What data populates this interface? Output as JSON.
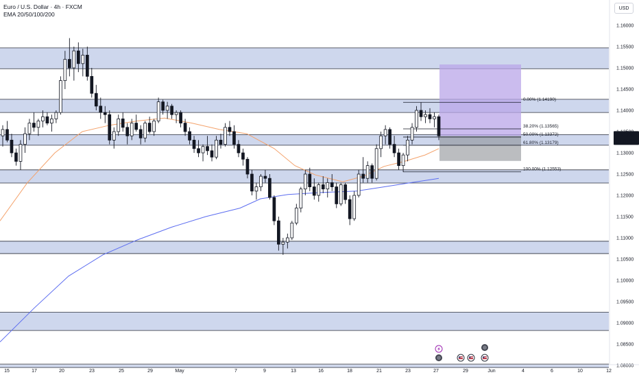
{
  "header": {
    "symbol_line": "Euro / U.S. Dollar · 4h · FXCM",
    "indicator_line": "EMA 20/50/100/200"
  },
  "currency_button": "USD",
  "price_axis": {
    "ticks": [
      "1.16000",
      "1.15500",
      "1.15000",
      "1.14500",
      "1.14000",
      "1.13500",
      "1.13000",
      "1.12500",
      "1.12000",
      "1.11500",
      "1.11000",
      "1.10500",
      "1.10000",
      "1.09500",
      "1.09000",
      "1.08500",
      "1.08000"
    ],
    "current_price": "1.13398",
    "countdown": "01:07:33"
  },
  "time_axis": {
    "labels": [
      "15",
      "17",
      "20",
      "23",
      "25",
      "29",
      "May",
      "7",
      "9",
      "13",
      "16",
      "18",
      "21",
      "23",
      "27",
      "29",
      "Jun",
      "4",
      "6",
      "10",
      "12"
    ]
  },
  "chart_data": {
    "type": "candlestick",
    "title": "Euro / U.S. Dollar · 4h · FXCM",
    "indicators": [
      "EMA 20/50/100/200"
    ],
    "ylim": [
      1.0795,
      1.1635
    ],
    "last_price": 1.13398,
    "zones": [
      {
        "low": 1.1498,
        "high": 1.1547
      },
      {
        "low": 1.1395,
        "high": 1.1426
      },
      {
        "low": 1.1318,
        "high": 1.1343
      },
      {
        "low": 1.1229,
        "high": 1.126
      },
      {
        "low": 1.1063,
        "high": 1.1092
      },
      {
        "low": 1.0882,
        "high": 1.0925
      },
      {
        "low": 1.0795,
        "high": 1.0803
      }
    ],
    "fibonacci": [
      {
        "label": "0.00% (1.14190)",
        "value": 1.1419
      },
      {
        "label": "38.20% (1.13565)",
        "value": 1.13565
      },
      {
        "label": "50.00% (1.13372)",
        "value": 1.13372
      },
      {
        "label": "61.80% (1.13179)",
        "value": 1.13179
      },
      {
        "label": "100.00% (1.12553)",
        "value": 1.12553
      }
    ],
    "position_tool": {
      "target": 1.1508,
      "entry": 1.134,
      "stop": 1.1281
    },
    "ema_slow": [
      [
        0,
        1.0855
      ],
      [
        50,
        1.0935
      ],
      [
        100,
        1.101
      ],
      [
        150,
        1.106
      ],
      [
        200,
        1.1095
      ],
      [
        250,
        1.1125
      ],
      [
        300,
        1.115
      ],
      [
        350,
        1.117
      ],
      [
        380,
        1.1192
      ],
      [
        420,
        1.1202
      ],
      [
        470,
        1.1207
      ],
      [
        520,
        1.121
      ],
      [
        560,
        1.122
      ],
      [
        600,
        1.123
      ],
      [
        640,
        1.124
      ]
    ],
    "ema_fast": [
      [
        0,
        1.114
      ],
      [
        40,
        1.123
      ],
      [
        80,
        1.13
      ],
      [
        120,
        1.135
      ],
      [
        160,
        1.1365
      ],
      [
        200,
        1.1375
      ],
      [
        240,
        1.1382
      ],
      [
        280,
        1.137
      ],
      [
        320,
        1.1355
      ],
      [
        360,
        1.1345
      ],
      [
        400,
        1.131
      ],
      [
        430,
        1.127
      ],
      [
        460,
        1.1248
      ],
      [
        500,
        1.1232
      ],
      [
        530,
        1.1245
      ],
      [
        560,
        1.1268
      ],
      [
        590,
        1.128
      ],
      [
        620,
        1.1295
      ],
      [
        640,
        1.131
      ]
    ],
    "candles": [
      [
        1.134,
        1.1365,
        1.1315,
        1.1355
      ],
      [
        1.1355,
        1.1375,
        1.1325,
        1.133
      ],
      [
        1.133,
        1.1345,
        1.129,
        1.13
      ],
      [
        1.13,
        1.131,
        1.127,
        1.128
      ],
      [
        1.128,
        1.133,
        1.126,
        1.132
      ],
      [
        1.132,
        1.136,
        1.13,
        1.1345
      ],
      [
        1.1345,
        1.138,
        1.133,
        1.137
      ],
      [
        1.137,
        1.1395,
        1.135,
        1.136
      ],
      [
        1.136,
        1.138,
        1.134,
        1.1375
      ],
      [
        1.1375,
        1.14,
        1.136,
        1.1385
      ],
      [
        1.1385,
        1.1395,
        1.1365,
        1.137
      ],
      [
        1.137,
        1.139,
        1.135,
        1.138
      ],
      [
        1.138,
        1.14,
        1.137,
        1.1395
      ],
      [
        1.1395,
        1.148,
        1.139,
        1.147
      ],
      [
        1.147,
        1.154,
        1.145,
        1.152
      ],
      [
        1.152,
        1.157,
        1.148,
        1.15
      ],
      [
        1.15,
        1.155,
        1.147,
        1.154
      ],
      [
        1.154,
        1.156,
        1.149,
        1.151
      ],
      [
        1.151,
        1.1545,
        1.148,
        1.153
      ],
      [
        1.153,
        1.155,
        1.147,
        1.148
      ],
      [
        1.148,
        1.15,
        1.143,
        1.144
      ],
      [
        1.144,
        1.146,
        1.14,
        1.141
      ],
      [
        1.141,
        1.143,
        1.138,
        1.1395
      ],
      [
        1.1395,
        1.141,
        1.137,
        1.139
      ],
      [
        1.139,
        1.14,
        1.132,
        1.133
      ],
      [
        1.133,
        1.136,
        1.131,
        1.135
      ],
      [
        1.135,
        1.139,
        1.134,
        1.138
      ],
      [
        1.138,
        1.1395,
        1.135,
        1.136
      ],
      [
        1.136,
        1.137,
        1.132,
        1.134
      ],
      [
        1.134,
        1.138,
        1.133,
        1.137
      ],
      [
        1.137,
        1.139,
        1.135,
        1.1355
      ],
      [
        1.1355,
        1.1365,
        1.132,
        1.1335
      ],
      [
        1.1335,
        1.1375,
        1.1325,
        1.137
      ],
      [
        1.137,
        1.1385,
        1.1345,
        1.135
      ],
      [
        1.135,
        1.138,
        1.134,
        1.1375
      ],
      [
        1.1375,
        1.143,
        1.137,
        1.142
      ],
      [
        1.142,
        1.1425,
        1.139,
        1.14
      ],
      [
        1.14,
        1.142,
        1.138,
        1.141
      ],
      [
        1.141,
        1.1415,
        1.138,
        1.139
      ],
      [
        1.139,
        1.14,
        1.137,
        1.1395
      ],
      [
        1.1395,
        1.14,
        1.136,
        1.137
      ],
      [
        1.137,
        1.138,
        1.134,
        1.135
      ],
      [
        1.135,
        1.136,
        1.132,
        1.133
      ],
      [
        1.133,
        1.134,
        1.13,
        1.131
      ],
      [
        1.131,
        1.133,
        1.129,
        1.13
      ],
      [
        1.13,
        1.132,
        1.128,
        1.1315
      ],
      [
        1.1315,
        1.134,
        1.1295,
        1.1305
      ],
      [
        1.1305,
        1.132,
        1.128,
        1.129
      ],
      [
        1.129,
        1.134,
        1.1285,
        1.133
      ],
      [
        1.133,
        1.1345,
        1.131,
        1.132
      ],
      [
        1.132,
        1.137,
        1.1315,
        1.136
      ],
      [
        1.136,
        1.1375,
        1.134,
        1.135
      ],
      [
        1.135,
        1.1365,
        1.131,
        1.132
      ],
      [
        1.132,
        1.133,
        1.129,
        1.13
      ],
      [
        1.13,
        1.131,
        1.127,
        1.1285
      ],
      [
        1.1285,
        1.129,
        1.124,
        1.125
      ],
      [
        1.125,
        1.126,
        1.12,
        1.121
      ],
      [
        1.121,
        1.123,
        1.119,
        1.122
      ],
      [
        1.122,
        1.125,
        1.121,
        1.1245
      ],
      [
        1.1245,
        1.126,
        1.123,
        1.124
      ],
      [
        1.124,
        1.125,
        1.119,
        1.1195
      ],
      [
        1.1195,
        1.12,
        1.113,
        1.114
      ],
      [
        1.114,
        1.115,
        1.107,
        1.1085
      ],
      [
        1.1085,
        1.11,
        1.106,
        1.109
      ],
      [
        1.109,
        1.111,
        1.1075,
        1.11
      ],
      [
        1.11,
        1.114,
        1.1095,
        1.1135
      ],
      [
        1.1135,
        1.118,
        1.113,
        1.117
      ],
      [
        1.117,
        1.122,
        1.116,
        1.1215
      ],
      [
        1.1215,
        1.126,
        1.12,
        1.125
      ],
      [
        1.125,
        1.1265,
        1.121,
        1.122
      ],
      [
        1.122,
        1.124,
        1.119,
        1.12
      ],
      [
        1.12,
        1.123,
        1.1185,
        1.1225
      ],
      [
        1.1225,
        1.1245,
        1.1205,
        1.1215
      ],
      [
        1.1215,
        1.124,
        1.1195,
        1.123
      ],
      [
        1.123,
        1.125,
        1.121,
        1.122
      ],
      [
        1.122,
        1.123,
        1.117,
        1.118
      ],
      [
        1.118,
        1.123,
        1.1175,
        1.1225
      ],
      [
        1.1225,
        1.123,
        1.118,
        1.119
      ],
      [
        1.119,
        1.12,
        1.113,
        1.1145
      ],
      [
        1.1145,
        1.121,
        1.114,
        1.12
      ],
      [
        1.12,
        1.126,
        1.1195,
        1.125
      ],
      [
        1.125,
        1.129,
        1.123,
        1.124
      ],
      [
        1.124,
        1.128,
        1.123,
        1.127
      ],
      [
        1.127,
        1.1275,
        1.123,
        1.124
      ],
      [
        1.124,
        1.132,
        1.1235,
        1.131
      ],
      [
        1.131,
        1.135,
        1.129,
        1.134
      ],
      [
        1.134,
        1.1365,
        1.132,
        1.1355
      ],
      [
        1.1355,
        1.136,
        1.131,
        1.132
      ],
      [
        1.132,
        1.134,
        1.129,
        1.13
      ],
      [
        1.13,
        1.131,
        1.126,
        1.127
      ],
      [
        1.127,
        1.13,
        1.1255,
        1.1295
      ],
      [
        1.1295,
        1.134,
        1.128,
        1.133
      ],
      [
        1.133,
        1.137,
        1.132,
        1.136
      ],
      [
        1.136,
        1.141,
        1.135,
        1.14
      ],
      [
        1.14,
        1.1419,
        1.1375,
        1.1385
      ],
      [
        1.1385,
        1.14,
        1.137,
        1.139
      ],
      [
        1.139,
        1.1405,
        1.137,
        1.138
      ],
      [
        1.138,
        1.1395,
        1.136,
        1.1385
      ],
      [
        1.1385,
        1.139,
        1.133,
        1.134
      ]
    ]
  },
  "events": {
    "icons": [
      {
        "name": "lightning-event-icon"
      },
      {
        "name": "news-event-icon"
      },
      {
        "name": "news-event-icon"
      },
      {
        "name": "us-flag-event-icon"
      },
      {
        "name": "us-flag-event-icon"
      },
      {
        "name": "us-flag-event-icon"
      },
      {
        "name": "us-flag-event-icon"
      }
    ]
  },
  "colors": {
    "bull": "#ffffff",
    "bear": "#131722",
    "zone_fill": "#c6d0ea",
    "zone_line": "#2a2e39",
    "ema_fast": "#f4a26b",
    "ema_slow": "#5b6cf0",
    "target": "#b9a6e8",
    "stop": "#8e9196",
    "price_tag": "#131722"
  }
}
